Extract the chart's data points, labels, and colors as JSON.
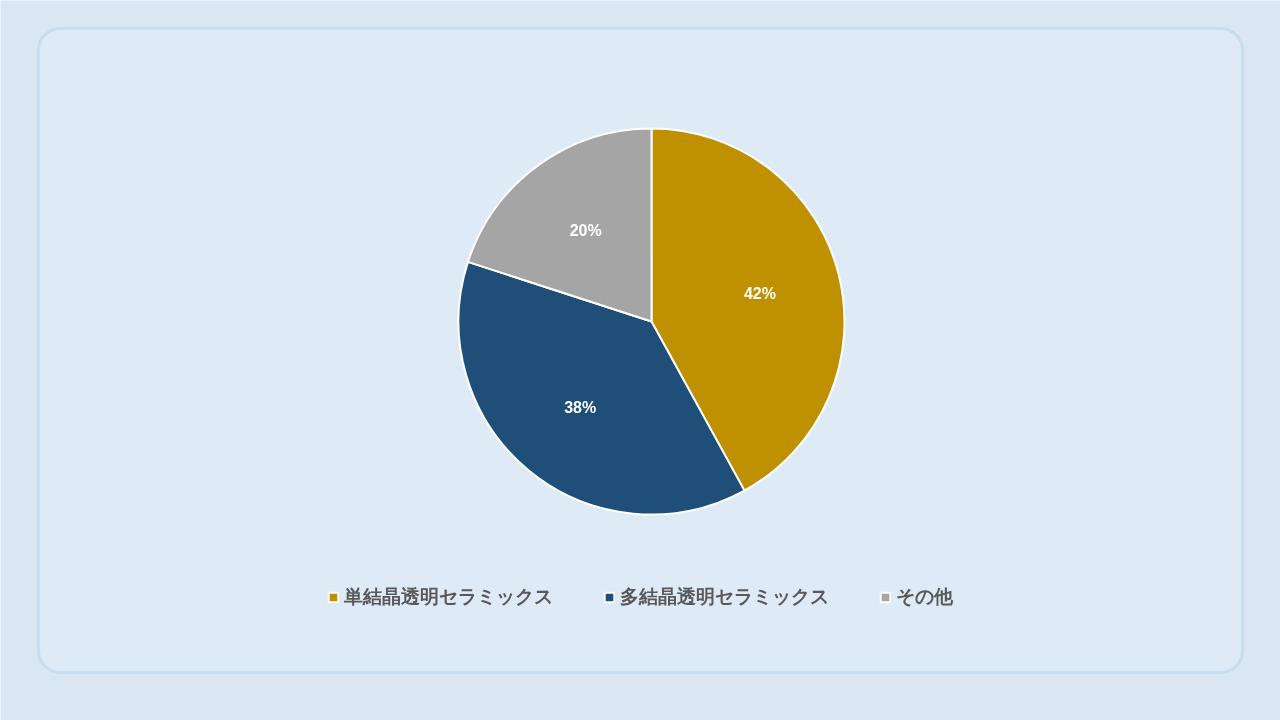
{
  "chart_data": {
    "type": "pie",
    "categories": [
      "単結晶透明セラミックス",
      "多結晶透明セラミックス",
      "その他"
    ],
    "values": [
      42,
      38,
      20
    ],
    "colors": [
      "#bf9000",
      "#1f4e79",
      "#a5a5a5"
    ],
    "value_labels": [
      "42%",
      "38%",
      "20%"
    ],
    "legend": "bottom"
  }
}
